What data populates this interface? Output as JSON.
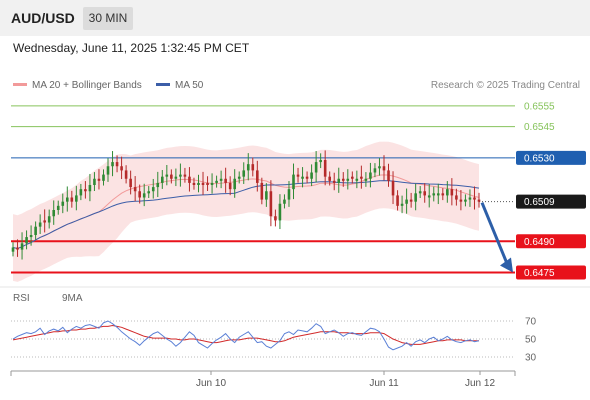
{
  "header": {
    "pair": "AUD/USD",
    "timeframe": "30 MIN",
    "datetime": "Wednesday, June 11, 2025 1:32:45 PM CET"
  },
  "legend": {
    "ma20_label": "MA 20 + Bollinger Bands",
    "ma50_label": "MA 50",
    "research": "Research © 2025 Trading Central"
  },
  "rsi_legend": {
    "rsi_label": "RSI",
    "ma9_label": "9MA"
  },
  "colors": {
    "up": "#2f8a34",
    "down": "#b52a2a",
    "ma20": "#f29a9a",
    "ma50": "#3c5ea8",
    "resistance_green": "#86c35b",
    "blue_level": "#1f5fb0",
    "red_level": "#e8121b",
    "rsi": "#5b80d6",
    "ma9": "#d22a2a",
    "arrow": "#2d5fa8"
  },
  "chart_data": [
    {
      "type": "candlestick",
      "ylim": [
        0.6469,
        0.6565
      ],
      "price_levels": [
        {
          "value": 0.6555,
          "label": "0.6555",
          "style": "green-line"
        },
        {
          "value": 0.6545,
          "label": "0.6545",
          "style": "green-line"
        },
        {
          "value": 0.653,
          "label": "0.6530",
          "style": "blue-line"
        },
        {
          "value": 0.6509,
          "label": "0.6509",
          "style": "current-price"
        },
        {
          "value": 0.649,
          "label": "0.6490",
          "style": "red-line"
        },
        {
          "value": 0.6475,
          "label": "0.6475",
          "style": "red-line"
        }
      ],
      "x_ticks": [
        "Jun 10",
        "Jun 11",
        "Jun 12"
      ],
      "close": [
        0.6487,
        0.6486,
        0.6489,
        0.6492,
        0.6493,
        0.6497,
        0.6499,
        0.6499,
        0.6502,
        0.6505,
        0.6507,
        0.6509,
        0.6511,
        0.6509,
        0.6512,
        0.6515,
        0.6514,
        0.6517,
        0.652,
        0.6519,
        0.6522,
        0.6526,
        0.6528,
        0.6526,
        0.6524,
        0.652,
        0.6516,
        0.6514,
        0.6511,
        0.6513,
        0.6514,
        0.6516,
        0.6518,
        0.6521,
        0.6522,
        0.652,
        0.6521,
        0.6522,
        0.6521,
        0.6518,
        0.6517,
        0.6518,
        0.6517,
        0.6517,
        0.6518,
        0.6519,
        0.652,
        0.6518,
        0.6515,
        0.652,
        0.6521,
        0.6524,
        0.6527,
        0.6524,
        0.6518,
        0.651,
        0.6514,
        0.6502,
        0.65,
        0.6508,
        0.651,
        0.6515,
        0.6522,
        0.6521,
        0.6521,
        0.652,
        0.6523,
        0.6528,
        0.6529,
        0.6521,
        0.6519,
        0.6518,
        0.652,
        0.6519,
        0.652,
        0.652,
        0.652,
        0.652,
        0.652,
        0.6523,
        0.6525,
        0.6526,
        0.6524,
        0.6519,
        0.6512,
        0.6507,
        0.6508,
        0.651,
        0.6509,
        0.6513,
        0.6514,
        0.6512,
        0.6512,
        0.6513,
        0.6513,
        0.6512,
        0.6515,
        0.6512,
        0.651,
        0.6509,
        0.651,
        0.6511,
        0.651,
        0.6509
      ],
      "rsi": {
        "ylim": [
          20,
          80
        ],
        "levels": [
          70,
          50,
          30
        ],
        "level_labels": [
          "70",
          "50",
          "30"
        ],
        "rsi": [
          50,
          53,
          55,
          57,
          56,
          58,
          62,
          55,
          59,
          61,
          59,
          63,
          57,
          61,
          64,
          62,
          65,
          66,
          64,
          62,
          68,
          70,
          67,
          63,
          58,
          54,
          50,
          47,
          43,
          48,
          52,
          56,
          58,
          54,
          50,
          47,
          42,
          46,
          52,
          58,
          54,
          46,
          43,
          40,
          45,
          49,
          52,
          56,
          50,
          46,
          52,
          55,
          58,
          52,
          46,
          47,
          42,
          40,
          44,
          48,
          56,
          58,
          55,
          60,
          59,
          58,
          62,
          67,
          64,
          56,
          58,
          60,
          57,
          53,
          56,
          57,
          55,
          54,
          58,
          62,
          61,
          58,
          50,
          41,
          38,
          40,
          42,
          46,
          42,
          47,
          49,
          46,
          50,
          52,
          48,
          50,
          53,
          49,
          47,
          46,
          48,
          49,
          47,
          48
        ],
        "ma9": [
          49,
          50,
          51,
          52,
          53,
          54,
          55,
          56,
          57,
          58,
          58,
          59,
          59,
          60,
          60,
          61,
          61,
          62,
          62,
          63,
          64,
          64,
          65,
          64,
          63,
          61,
          59,
          57,
          55,
          53,
          52,
          51,
          51,
          51,
          51,
          50,
          50,
          49,
          49,
          50,
          50,
          49,
          48,
          47,
          46,
          46,
          47,
          48,
          49,
          49,
          49,
          50,
          51,
          51,
          51,
          50,
          49,
          48,
          47,
          47,
          48,
          50,
          52,
          53,
          54,
          55,
          56,
          57,
          58,
          58,
          58,
          58,
          57,
          57,
          57,
          56,
          56,
          56,
          56,
          57,
          57,
          57,
          56,
          53,
          50,
          48,
          46,
          45,
          44,
          44,
          44,
          45,
          46,
          47,
          48,
          48,
          49,
          49,
          49,
          49,
          48,
          48,
          48,
          48
        ]
      }
    }
  ]
}
